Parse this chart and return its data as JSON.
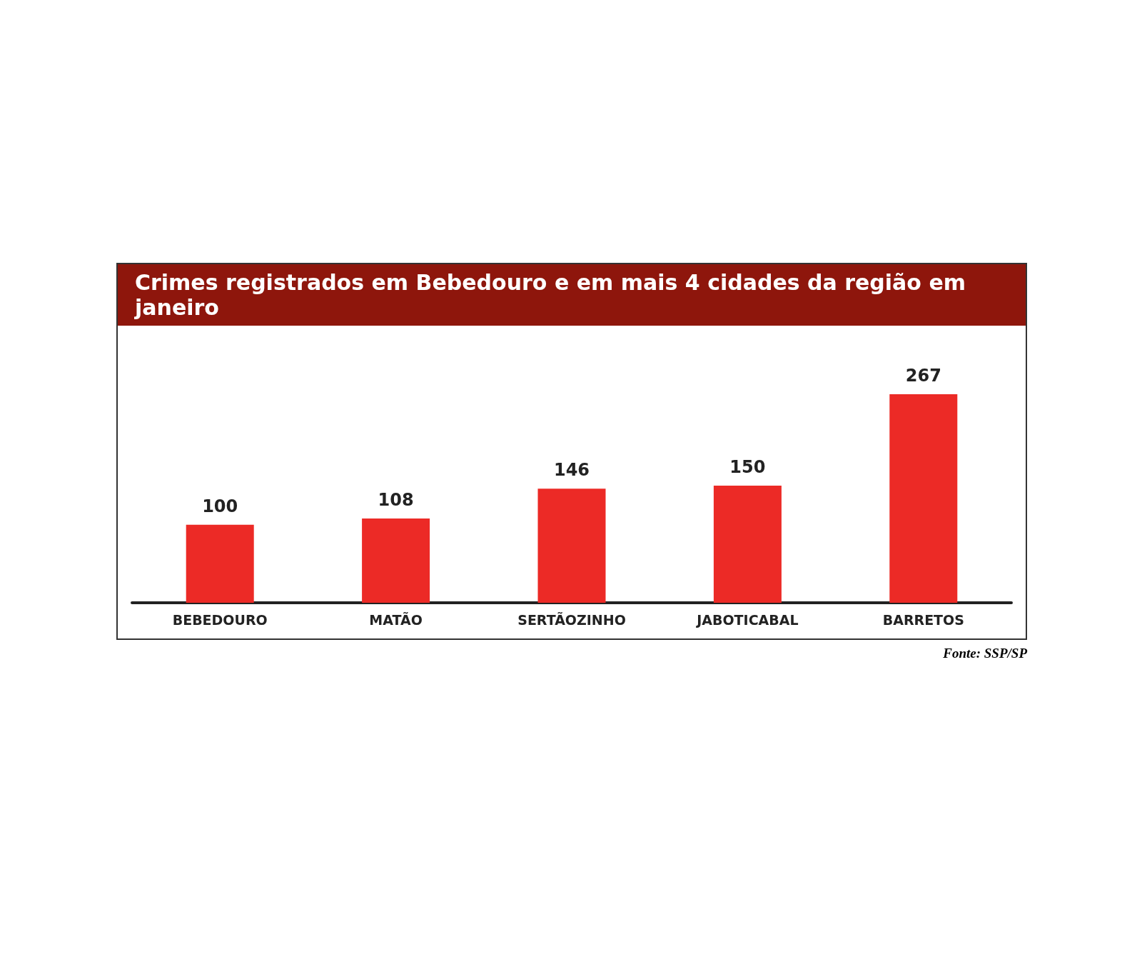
{
  "chart_data": {
    "type": "bar",
    "title": "Crimes registrados em Bebedouro e em mais 4 cidades da região em janeiro",
    "categories": [
      "BEBEDOURO",
      "MATÃO",
      "SERTÃOZINHO",
      "JABOTICABAL",
      "BARRETOS"
    ],
    "values": [
      100,
      108,
      146,
      150,
      267
    ],
    "color": "#ec2a26",
    "data_labels": true,
    "annotations": [
      "Fonte: SSP/SP"
    ]
  }
}
